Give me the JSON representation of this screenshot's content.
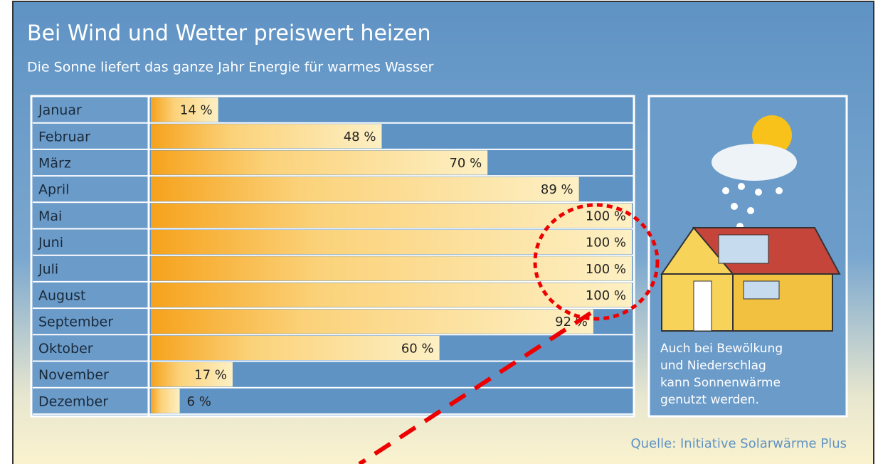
{
  "chart_data": {
    "type": "bar",
    "orientation": "horizontal",
    "title": "Bei Wind und Wetter preiswert heizen",
    "subtitle": "Die Sonne liefert das ganze Jahr Energie für warmes Wasser",
    "categories": [
      "Januar",
      "Februar",
      "März",
      "April",
      "Mai",
      "Juni",
      "Juli",
      "August",
      "September",
      "Oktober",
      "November",
      "Dezember"
    ],
    "values": [
      14,
      48,
      70,
      89,
      100,
      100,
      100,
      100,
      92,
      60,
      17,
      6
    ],
    "value_labels": [
      "14 %",
      "48 %",
      "70 %",
      "89 %",
      "100 %",
      "100 %",
      "100 %",
      "100 %",
      "92 %",
      "60 %",
      "17 %",
      "6 %"
    ],
    "xlim": [
      0,
      100
    ],
    "color": "#f5a623",
    "note": [
      "Auch bei Bewölkung",
      "und Niederschlag",
      "kann Sonnenwärme",
      "genutzt werden."
    ],
    "source": "Quelle: Initiative Solarwärme Plus"
  }
}
